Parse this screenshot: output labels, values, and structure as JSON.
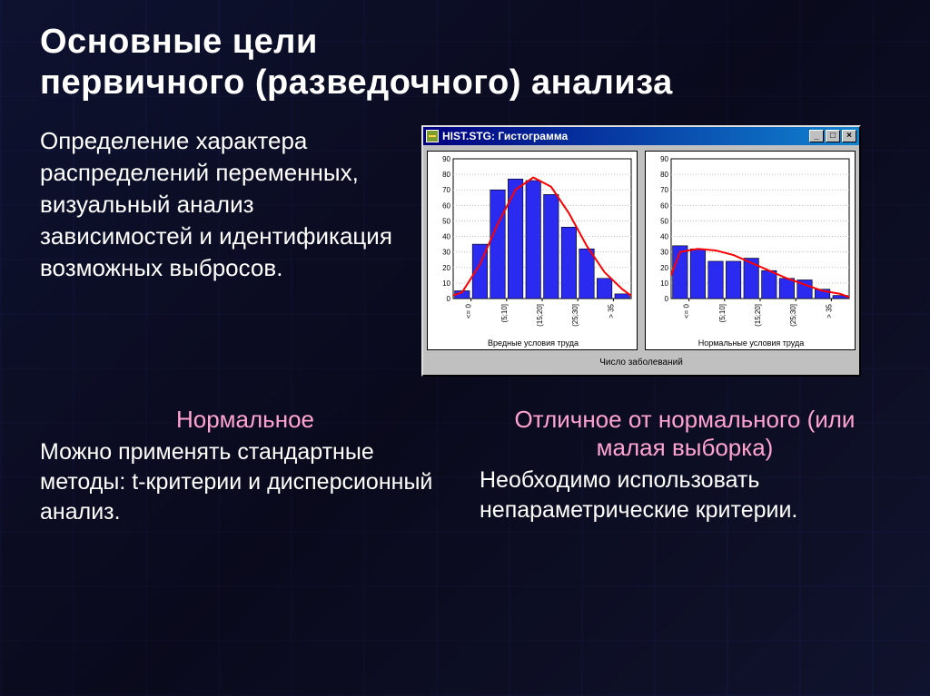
{
  "title_line1": "Основные цели",
  "title_line2": "первичного (разведочного) анализа",
  "intro": "Определение характера распределений переменных, визуальный анализ зависимостей и идентификация возможных выбросов.",
  "histogram_window": {
    "title": "HIST.STG: Гистограмма",
    "caption": "Число заболеваний",
    "buttons": {
      "min": "_",
      "max": "□",
      "close": "×"
    },
    "chart_left": {
      "type": "histogram",
      "xlabel": "Вредные условия труда",
      "categories": [
        "<= 0",
        "(5;10]",
        "(15;20]",
        "(25;30]",
        "> 35"
      ],
      "ylim": [
        0,
        90
      ],
      "ytick_step": 10,
      "bar_color": "#2a2af0",
      "bar_edge": "#000000",
      "curve_color": "#ff0000",
      "grid_color": "#c0c0c0",
      "background": "#ffffff",
      "values": [
        5,
        35,
        70,
        77,
        76,
        67,
        46,
        32,
        13,
        3
      ],
      "curve": [
        4,
        22,
        48,
        70,
        78,
        72,
        55,
        34,
        17,
        6
      ]
    },
    "chart_right": {
      "type": "histogram",
      "xlabel": "Нормальные условия труда",
      "categories": [
        "<= 0",
        "(5;10]",
        "(15;20]",
        "(25;30]",
        "> 35"
      ],
      "ylim": [
        0,
        90
      ],
      "ytick_step": 10,
      "bar_color": "#2a2af0",
      "bar_edge": "#000000",
      "curve_color": "#ff0000",
      "grid_color": "#c0c0c0",
      "background": "#ffffff",
      "values": [
        34,
        32,
        24,
        24,
        26,
        18,
        13,
        12,
        6,
        2
      ],
      "curve": [
        30,
        32,
        31,
        28,
        23,
        18,
        13,
        9,
        5,
        3
      ]
    }
  },
  "left_col": {
    "title": "Нормальное",
    "body": "Можно применять стандартные методы: t-критерии и дисперсионный анализ."
  },
  "right_col": {
    "title": "Отличное от нормального (или малая выборка)",
    "body": "Необходимо использовать непараметрические критерии."
  },
  "colors": {
    "accent_text": "#ffa3d0",
    "title_text": "#ffffff"
  }
}
